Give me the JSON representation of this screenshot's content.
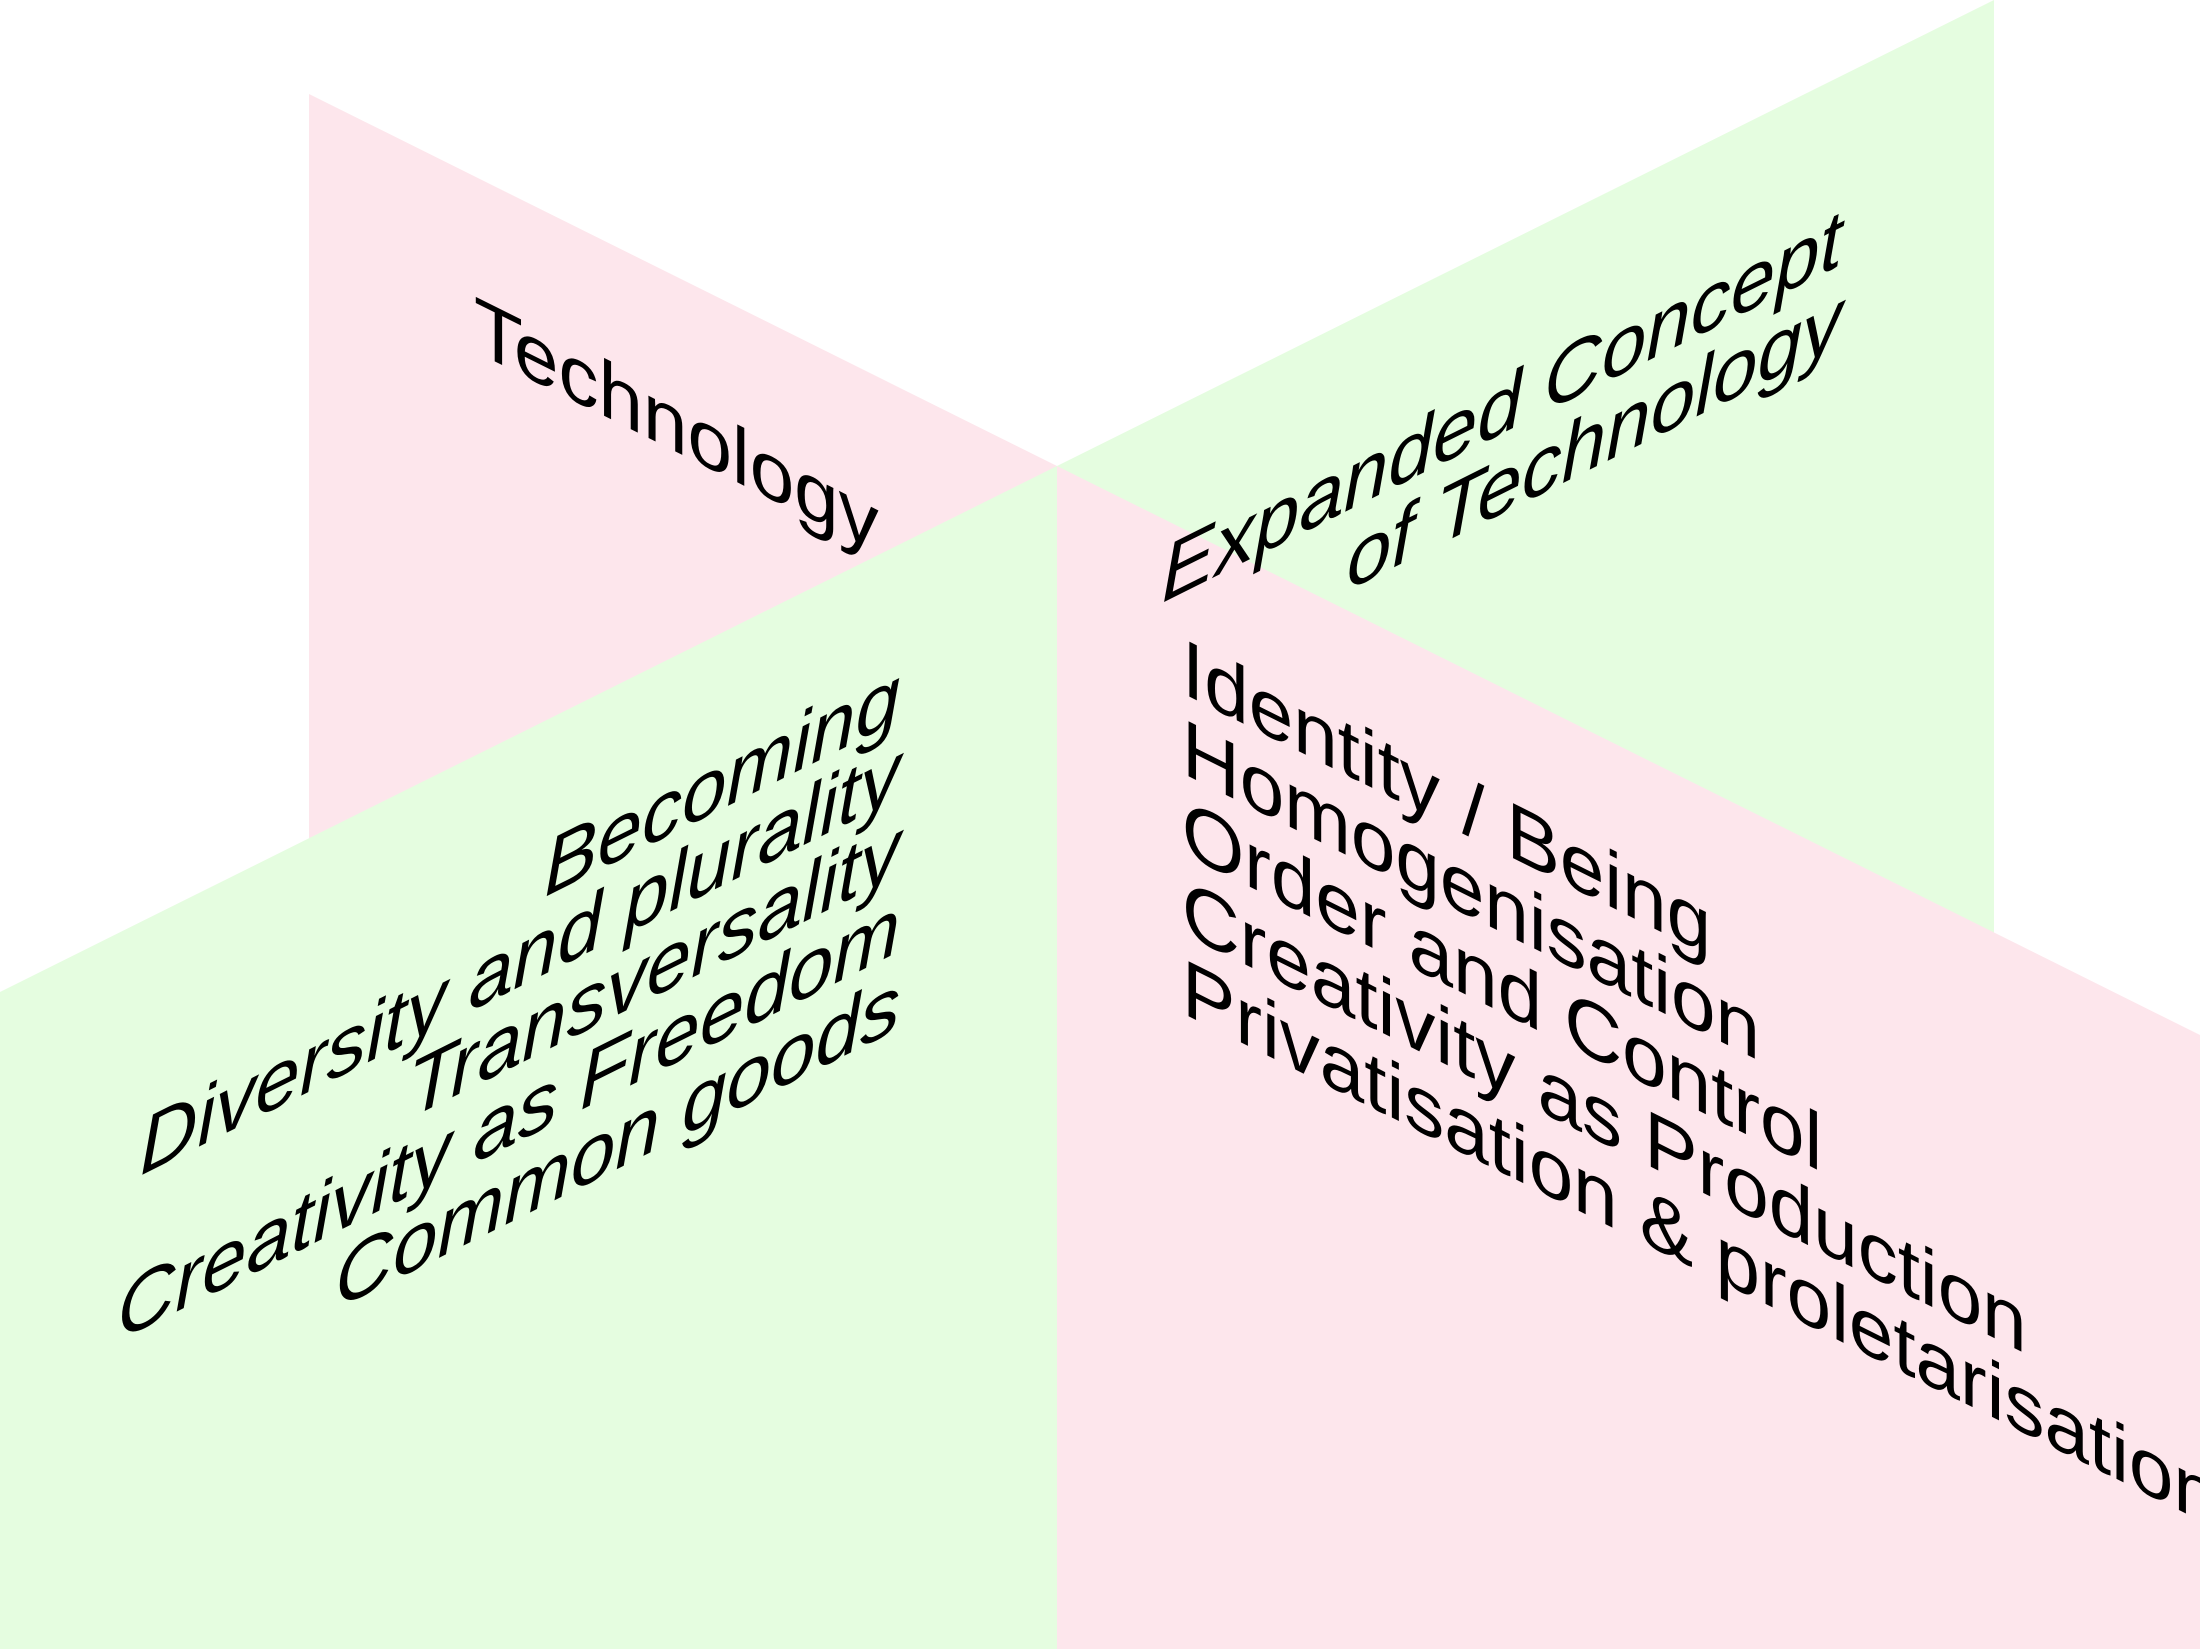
{
  "colors": {
    "pink": "#fde6ec",
    "green": "#e5fde0",
    "text": "#000000"
  },
  "top_left": {
    "label": "Technology"
  },
  "top_right": {
    "lines": [
      "Expanded Concept",
      "of Technology"
    ]
  },
  "bottom_left": {
    "items": [
      "Becoming",
      "Diversity and plurality",
      "Transversality",
      "Creativity as Freedom",
      "Common goods"
    ]
  },
  "bottom_right": {
    "items": [
      "Identity / Being",
      "Homogenisation",
      "Order and Control",
      "Creativity as Production",
      "Privatisation & proletarisation"
    ]
  }
}
